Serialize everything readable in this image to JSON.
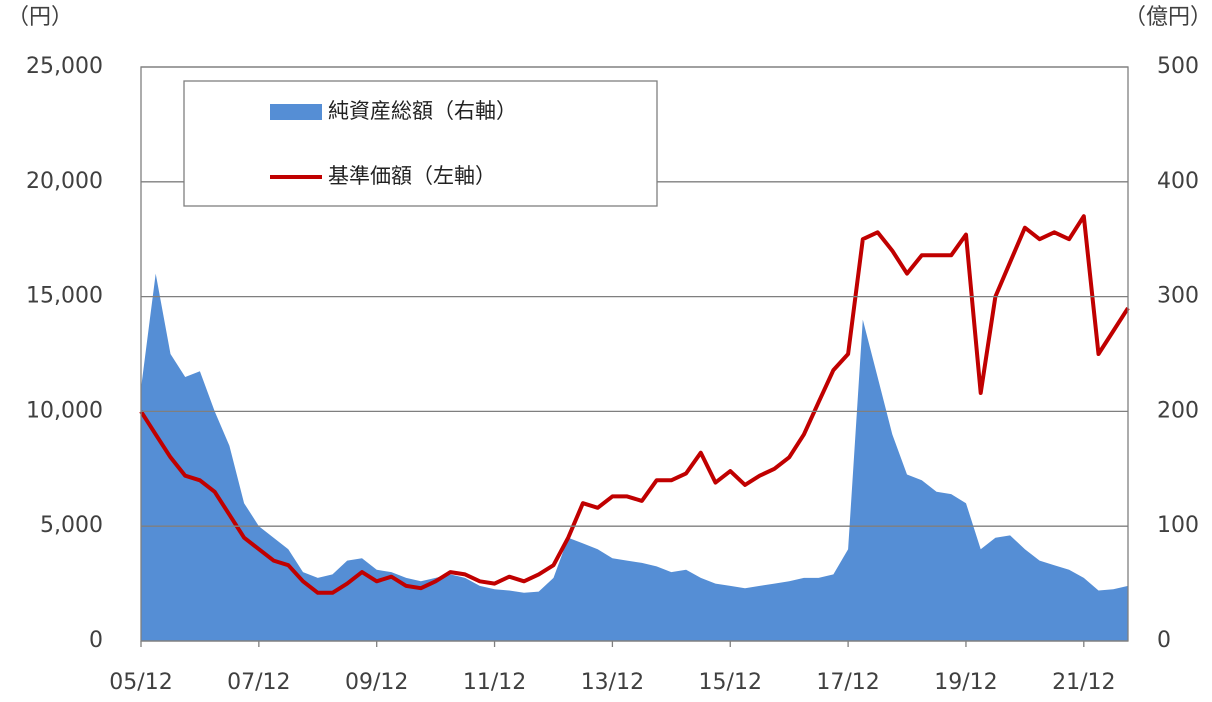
{
  "chart_data": {
    "type": "combo",
    "y_unit_label": "（円）",
    "y2_unit_label": "（億円）",
    "categories": [
      "05/12",
      null,
      null,
      null,
      null,
      null,
      null,
      null,
      "07/12",
      null,
      null,
      null,
      null,
      null,
      null,
      null,
      "09/12",
      null,
      null,
      null,
      null,
      null,
      null,
      null,
      "11/12",
      null,
      null,
      null,
      null,
      null,
      null,
      null,
      "13/12",
      null,
      null,
      null,
      null,
      null,
      null,
      null,
      "15/12",
      null,
      null,
      null,
      null,
      null,
      null,
      null,
      "17/12",
      null,
      null,
      null,
      null,
      null,
      null,
      null,
      "19/12",
      null,
      null,
      null,
      null,
      null,
      null,
      null,
      "21/12",
      null,
      null,
      null
    ],
    "series": [
      {
        "name": "純資産総額（右軸）",
        "type": "area",
        "axis": "y2",
        "color": "#558ed5",
        "values": [
          220,
          320,
          250,
          230,
          235,
          200,
          170,
          120,
          100,
          90,
          80,
          60,
          55,
          58,
          70,
          72,
          62,
          60,
          55,
          52,
          55,
          58,
          55,
          48,
          45,
          44,
          42,
          43,
          55,
          90,
          85,
          80,
          72,
          70,
          68,
          65,
          60,
          62,
          55,
          50,
          48,
          46,
          48,
          50,
          52,
          55,
          55,
          58,
          80,
          280,
          230,
          180,
          145,
          140,
          130,
          128,
          120,
          80,
          90,
          92,
          80,
          70,
          66,
          62,
          55,
          44,
          45,
          48
        ]
      },
      {
        "name": "基準価額（左軸）",
        "type": "line",
        "axis": "y",
        "color": "#c00000",
        "values": [
          10000,
          9000,
          8000,
          7200,
          7000,
          6500,
          5500,
          4500,
          4000,
          3500,
          3300,
          2600,
          2100,
          2100,
          2500,
          3000,
          2600,
          2800,
          2400,
          2300,
          2600,
          3000,
          2900,
          2600,
          2500,
          2800,
          2600,
          2900,
          3300,
          4500,
          6000,
          5800,
          6300,
          6300,
          6100,
          7000,
          7000,
          7300,
          8200,
          6900,
          7400,
          6800,
          7200,
          7500,
          8000,
          9000,
          10400,
          11800,
          12500,
          17500,
          17800,
          17000,
          16000,
          16800,
          16800,
          16800,
          17700,
          10800,
          15000,
          16500,
          18000,
          17500,
          17800,
          17500,
          18500,
          12500,
          13500,
          14500
        ]
      }
    ],
    "ylim": [
      0,
      25000
    ],
    "yticks": [
      0,
      {
        "value": 5000,
        "label": "5,000"
      },
      {
        "value": 10000,
        "label": "10,000"
      },
      {
        "value": 15000,
        "label": "15,000"
      },
      {
        "value": 20000,
        "label": "20,000"
      },
      {
        "value": 25000,
        "label": "25,000"
      }
    ],
    "y2lim": [
      0,
      500
    ],
    "y2ticks": [
      0,
      100,
      200,
      300,
      400,
      500
    ],
    "grid": true
  }
}
